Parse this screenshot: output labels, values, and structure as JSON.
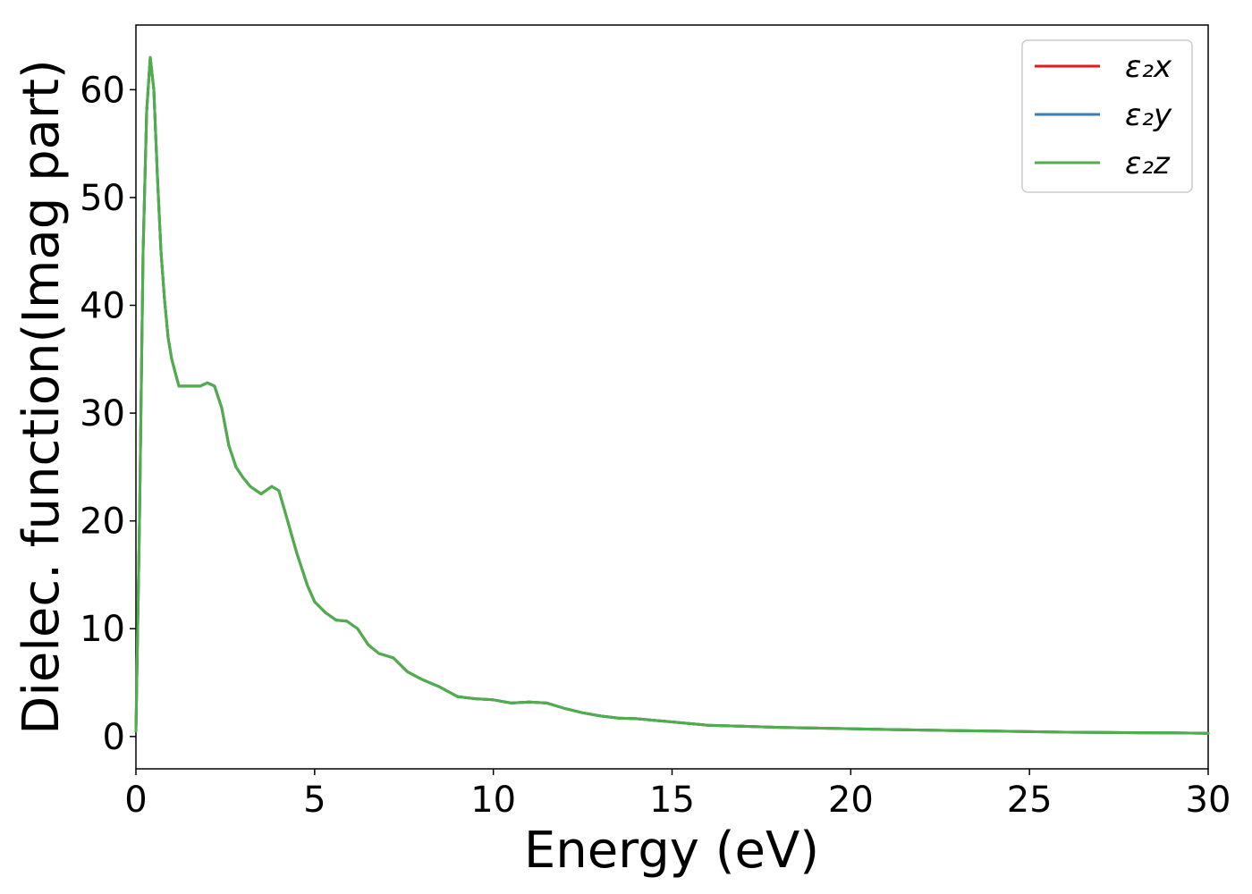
{
  "chart_data": {
    "type": "line",
    "title": "",
    "xlabel": "Energy (eV)",
    "ylabel": "Dielec. function(Imag part)",
    "xlim": [
      0,
      30
    ],
    "ylim": [
      -3,
      66
    ],
    "xticks": [
      0,
      5,
      10,
      15,
      20,
      25,
      30
    ],
    "yticks": [
      0,
      10,
      20,
      30,
      40,
      50,
      60
    ],
    "grid": false,
    "legend_position": "top-right",
    "x": [
      0,
      0.1,
      0.2,
      0.3,
      0.4,
      0.5,
      0.6,
      0.7,
      0.8,
      0.9,
      1.0,
      1.2,
      1.4,
      1.6,
      1.8,
      2.0,
      2.2,
      2.4,
      2.6,
      2.8,
      3.0,
      3.2,
      3.5,
      3.8,
      4.0,
      4.2,
      4.5,
      4.8,
      5.0,
      5.3,
      5.6,
      5.9,
      6.2,
      6.5,
      6.8,
      7.2,
      7.6,
      8.0,
      8.5,
      9.0,
      9.5,
      10.0,
      10.5,
      11.0,
      11.5,
      12.0,
      12.5,
      13.0,
      13.5,
      14.0,
      14.5,
      15.0,
      15.5,
      16.0,
      17.0,
      18.0,
      19.0,
      20.0,
      21.0,
      22.0,
      23.0,
      24.0,
      25.0,
      26.0,
      27.0,
      28.0,
      29.0,
      30.0
    ],
    "series": [
      {
        "name": "ε₂x",
        "color": "#e41a1c",
        "values": [
          0.5,
          20,
          45,
          58,
          63,
          60,
          52,
          45,
          40.5,
          37,
          35,
          32.5,
          32.5,
          32.5,
          32.5,
          32.8,
          32.5,
          30.5,
          27,
          25,
          24,
          23.2,
          22.5,
          23.2,
          22.8,
          20.5,
          17,
          14,
          12.5,
          11.5,
          10.8,
          10.7,
          10,
          8.5,
          7.7,
          7.3,
          6,
          5.3,
          4.6,
          3.7,
          3.5,
          3.4,
          3.1,
          3.2,
          3.1,
          2.6,
          2.2,
          1.9,
          1.7,
          1.65,
          1.5,
          1.35,
          1.2,
          1.05,
          0.95,
          0.85,
          0.78,
          0.72,
          0.65,
          0.6,
          0.55,
          0.5,
          0.45,
          0.4,
          0.38,
          0.35,
          0.33,
          0.3
        ]
      },
      {
        "name": "ε₂y",
        "color": "#377eb8",
        "values": [
          0.5,
          20,
          45,
          58,
          63,
          60,
          52,
          45,
          40.5,
          37,
          35,
          32.5,
          32.5,
          32.5,
          32.5,
          32.8,
          32.5,
          30.5,
          27,
          25,
          24,
          23.2,
          22.5,
          23.2,
          22.8,
          20.5,
          17,
          14,
          12.5,
          11.5,
          10.8,
          10.7,
          10,
          8.5,
          7.7,
          7.3,
          6,
          5.3,
          4.6,
          3.7,
          3.5,
          3.4,
          3.1,
          3.2,
          3.1,
          2.6,
          2.2,
          1.9,
          1.7,
          1.65,
          1.5,
          1.35,
          1.2,
          1.05,
          0.95,
          0.85,
          0.78,
          0.72,
          0.65,
          0.6,
          0.55,
          0.5,
          0.45,
          0.4,
          0.38,
          0.35,
          0.33,
          0.3
        ]
      },
      {
        "name": "ε₂z",
        "color": "#4daf4a",
        "values": [
          0.5,
          20,
          45,
          58,
          63,
          60,
          52,
          45,
          40.5,
          37,
          35,
          32.5,
          32.5,
          32.5,
          32.5,
          32.8,
          32.5,
          30.5,
          27,
          25,
          24,
          23.2,
          22.5,
          23.2,
          22.8,
          20.5,
          17,
          14,
          12.5,
          11.5,
          10.8,
          10.7,
          10,
          8.5,
          7.7,
          7.3,
          6,
          5.3,
          4.6,
          3.7,
          3.5,
          3.4,
          3.1,
          3.2,
          3.1,
          2.6,
          2.2,
          1.9,
          1.7,
          1.65,
          1.5,
          1.35,
          1.2,
          1.05,
          0.95,
          0.85,
          0.78,
          0.72,
          0.65,
          0.6,
          0.55,
          0.5,
          0.45,
          0.4,
          0.38,
          0.35,
          0.33,
          0.3
        ]
      }
    ]
  }
}
